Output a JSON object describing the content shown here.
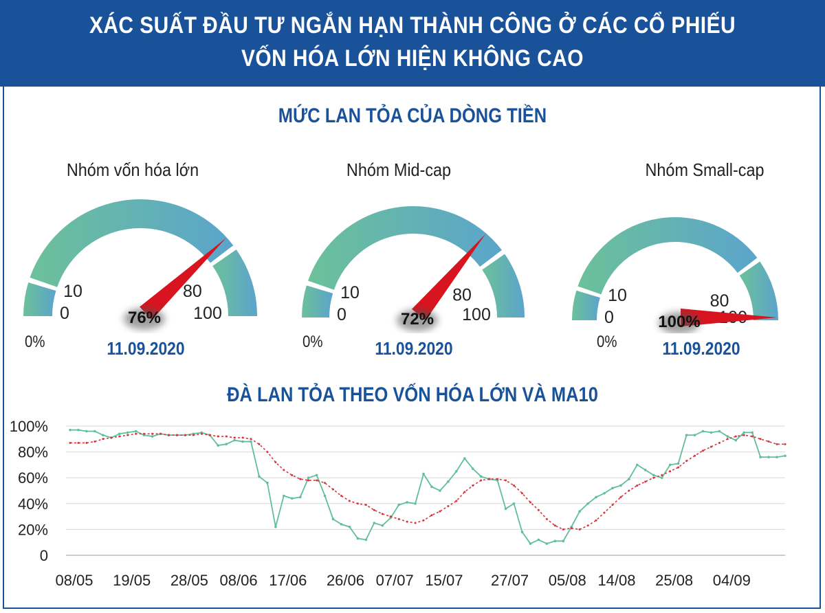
{
  "header": {
    "line1": "XÁC SUẤT ĐẦU TƯ NGẮN HẠN THÀNH CÔNG Ở CÁC CỔ PHIẾU",
    "line2": "VỐN HÓA LỚN HIỆN KHÔNG CAO"
  },
  "colors": {
    "header_bg": "#1a5299",
    "gauge_left": "#6cc199",
    "gauge_right": "#5ba4cc",
    "needle": "#d7141f",
    "series_main": "#5fbf9d",
    "series_ma10": "#d9343c",
    "grid": "#d9d9d9"
  },
  "chart_data": [
    {
      "type": "gauge",
      "title": "MỨC LAN TỎA CỦA DÒNG TIỀN",
      "gauges": [
        {
          "label": "Nhóm vốn hóa lớn",
          "value": 76,
          "value_label": "76%",
          "date": "11.09.2020",
          "tick_labels": {
            "t0": "0",
            "t10": "10",
            "t80": "80",
            "t100": "100"
          },
          "min_label": "0%"
        },
        {
          "label": "Nhóm Mid-cap",
          "value": 72,
          "value_label": "72%",
          "date": "11.09.2020",
          "tick_labels": {
            "t0": "0",
            "t10": "10",
            "t80": "80",
            "t100": "100"
          },
          "min_label": "0%"
        },
        {
          "label": "Nhóm Small-cap",
          "value": 100,
          "value_label": "100%",
          "date": "11.09.2020",
          "tick_labels": {
            "t0": "0",
            "t10": "10",
            "t80": "80",
            "t100": "100"
          },
          "min_label": "0%"
        }
      ],
      "segments": [
        0,
        10,
        80,
        100
      ],
      "range": [
        0,
        100
      ]
    },
    {
      "type": "line",
      "title": "ĐÀ LAN TỎA THEO VỐN HÓA LỚN VÀ MA10",
      "ylim": [
        0,
        100
      ],
      "y_ticks": [
        {
          "value": 0,
          "label": "0"
        },
        {
          "value": 20,
          "label": "20%"
        },
        {
          "value": 40,
          "label": "40%"
        },
        {
          "value": 60,
          "label": "60%"
        },
        {
          "value": 80,
          "label": "80%"
        },
        {
          "value": 100,
          "label": "100%"
        }
      ],
      "x_ticks": [
        {
          "index": 0,
          "label": "08/05"
        },
        {
          "index": 7,
          "label": "19/05"
        },
        {
          "index": 14,
          "label": "28/05"
        },
        {
          "index": 20,
          "label": "08/06"
        },
        {
          "index": 26,
          "label": "17/06"
        },
        {
          "index": 33,
          "label": "26/06"
        },
        {
          "index": 39,
          "label": "07/07"
        },
        {
          "index": 45,
          "label": "15/07"
        },
        {
          "index": 53,
          "label": "27/07"
        },
        {
          "index": 60,
          "label": "05/08"
        },
        {
          "index": 66,
          "label": "14/08"
        },
        {
          "index": 73,
          "label": "25/08"
        },
        {
          "index": 80,
          "label": "04/09"
        }
      ],
      "series": [
        {
          "values": [
            97,
            97,
            96,
            96,
            93,
            91,
            94,
            95,
            96,
            93,
            92,
            94,
            93,
            93,
            93,
            94,
            95,
            93,
            85,
            86,
            89,
            88,
            88,
            61,
            56,
            22,
            46,
            44,
            45,
            60,
            62,
            46,
            28,
            24,
            22,
            13,
            12,
            25,
            23,
            29,
            39,
            41,
            40,
            63,
            53,
            50,
            57,
            65,
            75,
            67,
            61,
            59,
            58,
            36,
            40,
            18,
            9,
            12,
            9,
            11,
            11,
            22,
            34,
            40,
            45,
            48,
            52,
            54,
            59,
            70,
            66,
            62,
            60,
            70,
            71,
            93,
            93,
            96,
            95,
            96,
            92,
            89,
            95,
            95,
            76,
            76,
            76,
            77
          ]
        },
        {
          "values": [
            87,
            87,
            87,
            88,
            90,
            91,
            92,
            93,
            94,
            94,
            94,
            94,
            93,
            93,
            93,
            93,
            94,
            93,
            92,
            92,
            91,
            91,
            90,
            86,
            80,
            72,
            66,
            62,
            59,
            58,
            58,
            56,
            51,
            46,
            42,
            40,
            39,
            35,
            32,
            30,
            28,
            26,
            25,
            27,
            31,
            34,
            38,
            42,
            49,
            54,
            58,
            59,
            59,
            58,
            54,
            48,
            41,
            35,
            28,
            23,
            20,
            21,
            20,
            23,
            27,
            33,
            39,
            45,
            50,
            54,
            57,
            60,
            62,
            65,
            68,
            73,
            77,
            81,
            84,
            87,
            90,
            92,
            93,
            92,
            90,
            88,
            86,
            86
          ]
        }
      ]
    }
  ]
}
